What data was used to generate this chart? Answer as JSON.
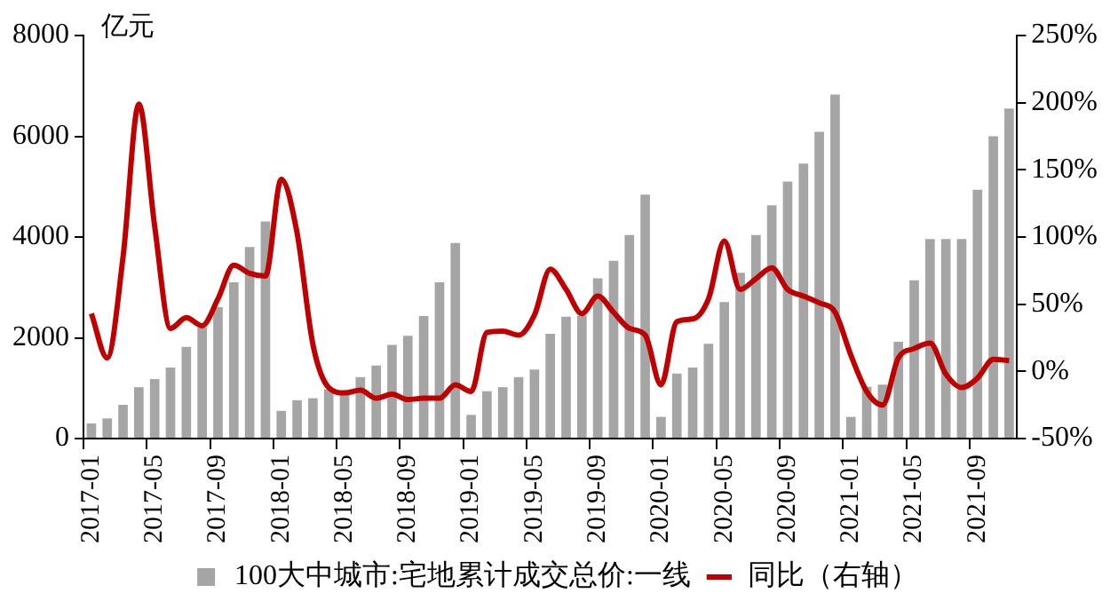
{
  "chart_data": {
    "type": "bar",
    "ylabel": "亿元",
    "categories": [
      "2017-01",
      null,
      null,
      null,
      "2017-05",
      null,
      null,
      null,
      "2017-09",
      null,
      null,
      null,
      "2018-01",
      null,
      null,
      null,
      "2018-05",
      null,
      null,
      null,
      "2018-09",
      null,
      null,
      null,
      "2019-01",
      null,
      null,
      null,
      "2019-05",
      null,
      null,
      null,
      "2019-09",
      null,
      null,
      null,
      "2020-01",
      null,
      null,
      null,
      "2020-05",
      null,
      null,
      null,
      "2020-09",
      null,
      null,
      null,
      "2021-01",
      null,
      null,
      null,
      "2021-05",
      null,
      null,
      null,
      "2021-09",
      null,
      null
    ],
    "series": [
      {
        "name": "100大中城市:宅地累计成交总价:一线",
        "color": "#a5a5a5",
        "values": [
          300,
          400,
          670,
          1020,
          1180,
          1410,
          1820,
          2210,
          2610,
          3100,
          3800,
          4310,
          550,
          760,
          800,
          980,
          880,
          1220,
          1450,
          1860,
          2040,
          2430,
          3100,
          3880,
          470,
          940,
          1020,
          1220,
          1370,
          2080,
          2420,
          2440,
          3180,
          3530,
          4040,
          4840,
          430,
          1290,
          1410,
          1880,
          2710,
          3290,
          4040,
          4630,
          5100,
          5460,
          6090,
          6830,
          430,
          1030,
          1070,
          1920,
          3140,
          3960,
          3960,
          3960,
          4940,
          6000,
          6550
        ]
      },
      {
        "name": "同比（右轴）",
        "type": "line",
        "axis": "y2",
        "color": "#c00000",
        "values": [
          43,
          10,
          85,
          199,
          108,
          32,
          40,
          34,
          54,
          79,
          73,
          71,
          143,
          103,
          20,
          -12,
          -16,
          -14,
          -20,
          -17,
          -21,
          -20,
          -20,
          -10,
          -15,
          29,
          30,
          27,
          42,
          76,
          61,
          43,
          56,
          44,
          32,
          27,
          -10,
          37,
          39,
          54,
          97,
          61,
          69,
          77,
          61,
          56,
          51,
          44,
          12,
          -15,
          -25,
          10,
          17,
          21,
          -2,
          -12,
          -5,
          9,
          8
        ]
      }
    ],
    "ylim": [
      0,
      8000
    ],
    "yticks": [
      0,
      2000,
      4000,
      6000,
      8000
    ],
    "y2lim": [
      -50,
      250
    ],
    "y2ticks": [
      {
        "value": -50,
        "label": "-50%"
      },
      {
        "value": 0,
        "label": "0%"
      },
      {
        "value": 50,
        "label": "50%"
      },
      {
        "value": 100,
        "label": "100%"
      },
      {
        "value": 150,
        "label": "150%"
      },
      {
        "value": 200,
        "label": "200%"
      },
      {
        "value": 250,
        "label": "250%"
      }
    ],
    "grid": false,
    "legend": "bottom",
    "marker": "none",
    "line_style": "solid"
  }
}
